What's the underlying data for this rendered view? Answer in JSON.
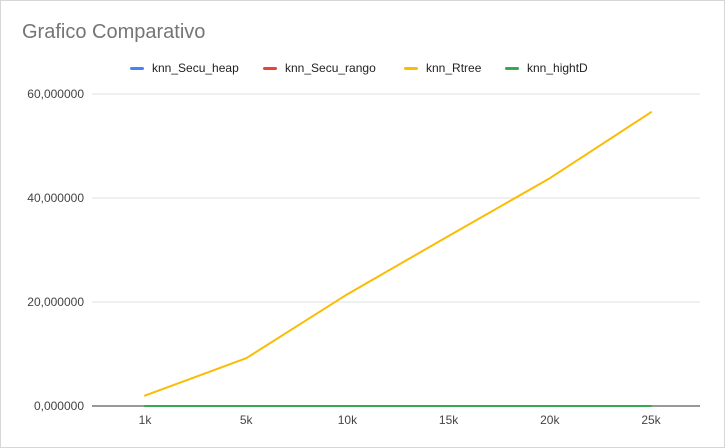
{
  "chart_data": {
    "type": "line",
    "title": "Grafico Comparativo",
    "xlabel": "",
    "ylabel": "",
    "categories": [
      "1k",
      "5k",
      "10k",
      "15k",
      "20k",
      "25k"
    ],
    "ylim": [
      0,
      60000000
    ],
    "y_ticks": [
      0,
      20000000,
      40000000,
      60000000
    ],
    "y_tick_labels": [
      "0,000000",
      "20,000000",
      "40,000000",
      "60,000000"
    ],
    "grid": true,
    "legend_position": "top",
    "series": [
      {
        "name": "knn_Secu_heap",
        "color": "#4285f4",
        "values": [
          0,
          0,
          0,
          0,
          0,
          0
        ]
      },
      {
        "name": "knn_Secu_rango",
        "color": "#ea4335",
        "values": [
          0,
          0,
          0,
          0,
          0,
          0
        ]
      },
      {
        "name": "knn_Rtree",
        "color": "#fbbc04",
        "values": [
          2000000,
          9200000,
          21500000,
          32700000,
          43800000,
          56500000
        ]
      },
      {
        "name": "knn_hightD",
        "color": "#34a853",
        "values": [
          0,
          0,
          0,
          0,
          0,
          0
        ]
      }
    ]
  }
}
